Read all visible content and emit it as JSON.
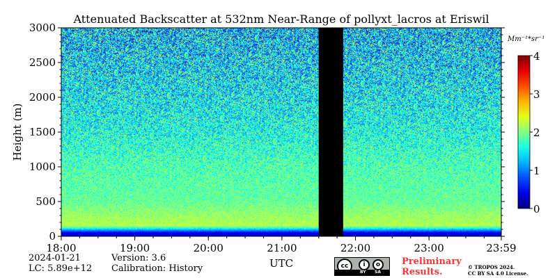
{
  "chart_data": {
    "type": "heatmap",
    "title": "Attenuated Backscatter at 532nm Near-Range of pollyxt_lacros at Eriswil",
    "xlabel": "UTC",
    "ylabel": "Height (m)",
    "x_ticks": [
      "18:00",
      "19:00",
      "20:00",
      "21:00",
      "22:00",
      "23:00",
      "23:59"
    ],
    "x_range_hours": [
      18.0,
      23.983
    ],
    "y_ticks": [
      0,
      500,
      1000,
      1500,
      2000,
      2500,
      3000
    ],
    "y_range": [
      0,
      3000
    ],
    "colorbar": {
      "label": "Mm⁻¹*sr⁻¹",
      "range": [
        0,
        4
      ],
      "ticks": [
        0,
        1,
        2,
        3,
        4
      ],
      "colormap": "jet"
    },
    "no_data_interval_hours": [
      21.5,
      21.833
    ],
    "profile": {
      "comment_free": true,
      "blind_zone_top_m": 100,
      "bright_layer_m": [
        100,
        300
      ],
      "typical_value_by_height": [
        {
          "height": 50,
          "value": 0.4
        },
        {
          "height": 150,
          "value": 2.2
        },
        {
          "height": 300,
          "value": 2.1
        },
        {
          "height": 500,
          "value": 1.9
        },
        {
          "height": 1000,
          "value": 1.8
        },
        {
          "height": 1500,
          "value": 1.6
        },
        {
          "height": 2000,
          "value": 1.5
        },
        {
          "height": 2500,
          "value": 1.4
        },
        {
          "height": 3000,
          "value": 1.3
        }
      ]
    }
  },
  "info": {
    "date": "2024-01-21",
    "lc": "LC: 5.89e+12",
    "version": "Version: 3.6",
    "calibration": "Calibration: History"
  },
  "footer": {
    "prelim_line1": "Preliminary",
    "prelim_line2": "Results.",
    "copyright_line1": "© TROPOS 2024.",
    "copyright_line2": "CC BY SA 4.0 License.",
    "cc_icon": "cc-by-sa-icon",
    "cc_by": "BY",
    "cc_sa": "SA"
  }
}
